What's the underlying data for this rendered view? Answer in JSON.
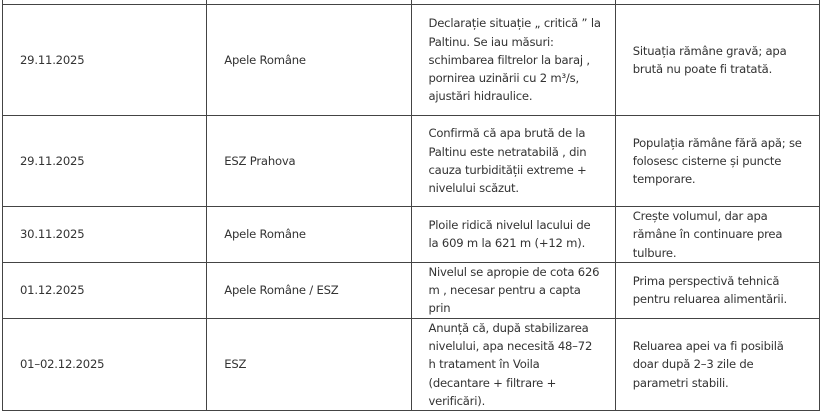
{
  "table": {
    "rows": [
      {
        "date": "29.11.2025",
        "source": "Apele Române",
        "action": "Declarație situație „ critică ” la Paltinu. Se iau măsuri: schimbarea filtrelor la baraj , pornirea uzinării cu 2 m³/s, ajustări hidraulice.",
        "effect": "Situația rămâne gravă; apa brută nu poate fi tratată."
      },
      {
        "date": "29.11.2025",
        "source": "ESZ Prahova",
        "action": "Confirmă că apa brută de la Paltinu este netratabilă , din cauza turbidității extreme + nivelului scăzut.",
        "effect": "Populația rămâne fără apă; se folosesc cisterne și puncte temporare."
      },
      {
        "date": "30.11.2025",
        "source": "Apele Române",
        "action": "Ploile ridică nivelul lacului de la 609 m la 621 m (+12 m).",
        "effect": "Crește volumul, dar apa rămâne în continuare prea tulbure."
      },
      {
        "date": "01.12.2025",
        "source": "Apele Române / ESZ",
        "action": "Nivelul se apropie de cota 626 m , necesar pentru a capta prin",
        "effect": "Prima perspectivă tehnică pentru reluarea alimentării."
      },
      {
        "date": "01–02.12.2025",
        "source": "ESZ",
        "action": "Anunță că, după stabilizarea nivelului, apa necesită 48–72 h tratament în Voila (decantare + filtrare + verificări).",
        "effect": "Reluarea apei va fi posibilă doar după 2–3 zile de parametri stabili."
      }
    ]
  }
}
